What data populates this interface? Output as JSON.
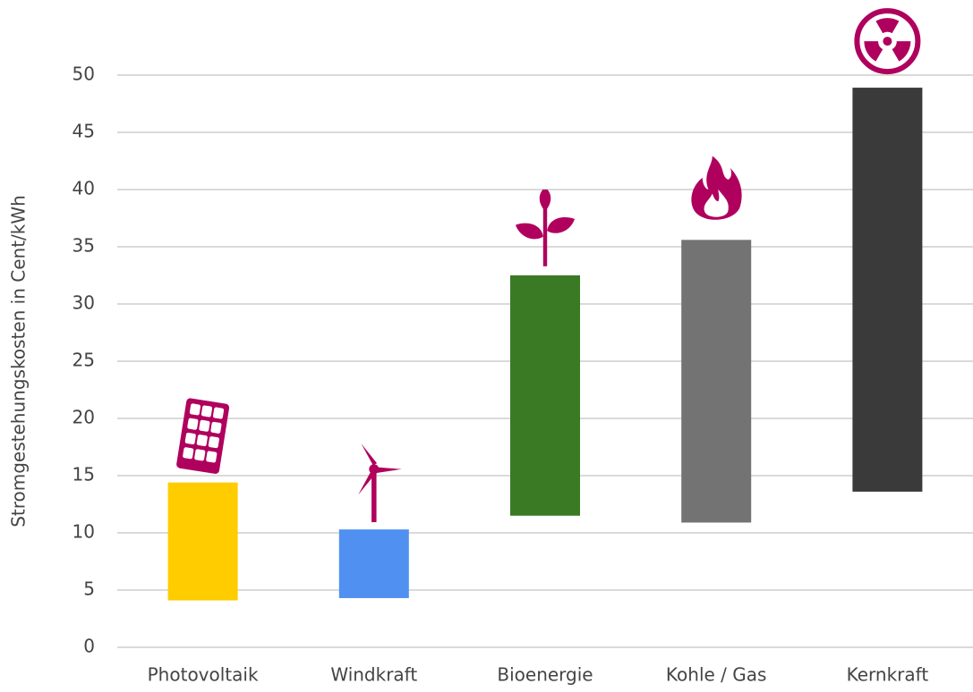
{
  "chart_data": {
    "type": "range-bar",
    "y_label": "Stromgestehungskosten in Cent/kWh",
    "categories": [
      "Photovoltaik",
      "Windkraft",
      "Bioenergie",
      "Kohle / Gas",
      "Kernkraft"
    ],
    "low": [
      4.1,
      4.3,
      11.5,
      10.9,
      13.6
    ],
    "high": [
      14.4,
      10.3,
      32.5,
      35.6,
      48.9
    ],
    "colors": [
      "#ffcc00",
      "#5090f0",
      "#3a7a24",
      "#737373",
      "#3a3a3a"
    ],
    "ylim": [
      0,
      50
    ],
    "yticks": [
      0,
      5,
      10,
      15,
      20,
      25,
      30,
      35,
      40,
      45,
      50
    ],
    "grid": true
  }
}
